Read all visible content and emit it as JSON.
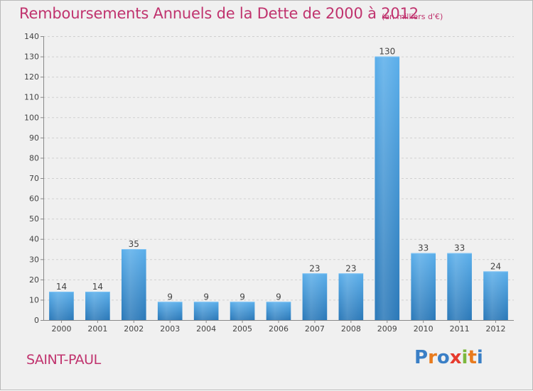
{
  "header": {
    "title": "Remboursements Annuels de la Dette de 2000 à 2012",
    "subtitle": "(en milliers d'€)"
  },
  "footer": {
    "city": "SAINT-PAUL",
    "logo": {
      "letters": [
        "P",
        "r",
        "o",
        "x",
        "i",
        "t",
        "i"
      ],
      "colors": [
        "#3a7fc6",
        "#e87b1e",
        "#3a7fc6",
        "#e63b2e",
        "#7cb83d",
        "#e87b1e",
        "#3a7fc6"
      ]
    }
  },
  "chart_data": {
    "type": "bar",
    "categories": [
      "2000",
      "2001",
      "2002",
      "2003",
      "2004",
      "2005",
      "2006",
      "2007",
      "2008",
      "2009",
      "2010",
      "2011",
      "2012"
    ],
    "values": [
      14,
      14,
      35,
      9,
      9,
      9,
      9,
      23,
      23,
      130,
      33,
      33,
      24
    ],
    "title": "Remboursements Annuels de la Dette de 2000 à 2012",
    "xlabel": "",
    "ylabel": "",
    "ylim": [
      0,
      140
    ],
    "yticks": [
      0,
      10,
      20,
      30,
      40,
      50,
      60,
      70,
      80,
      90,
      100,
      110,
      120,
      130,
      140
    ],
    "grid": true,
    "bar_color": "#4a9ee0",
    "label_color": "#444444"
  }
}
